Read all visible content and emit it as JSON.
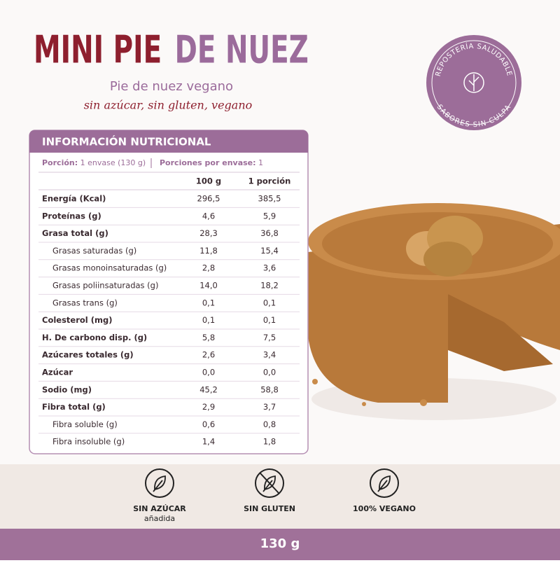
{
  "header": {
    "title_part1": "MINI PIE",
    "title_part2": "DE NUEZ",
    "subtitle": "Pie de nuez vegano",
    "tagline": "sin azúcar, sin gluten, vegano"
  },
  "badge": {
    "top": "REPOSTERÍA SALUDABLE",
    "bottom": "SABORES SIN CULPA"
  },
  "table": {
    "title": "INFORMACIÓN NUTRICIONAL",
    "portion_label": "Porción:",
    "portion_value": "1 envase (130 g)",
    "servings_label": "Porciones por envase:",
    "servings_value": "1",
    "columns": [
      "100 g",
      "1 porción"
    ],
    "rows": [
      {
        "label": "Energía (Kcal)",
        "per100": "296,5",
        "portion": "385,5"
      },
      {
        "label": "Proteínas (g)",
        "per100": "4,6",
        "portion": "5,9"
      },
      {
        "label": "Grasa total (g)",
        "per100": "28,3",
        "portion": "36,8"
      },
      {
        "label": "Grasas saturadas (g)",
        "per100": "11,8",
        "portion": "15,4",
        "indent": true
      },
      {
        "label": "Grasas monoinsaturadas (g)",
        "per100": "2,8",
        "portion": "3,6",
        "indent": true
      },
      {
        "label": "Grasas poliinsaturadas (g)",
        "per100": "14,0",
        "portion": "18,2",
        "indent": true
      },
      {
        "label": "Grasas trans (g)",
        "per100": "0,1",
        "portion": "0,1",
        "indent": true
      },
      {
        "label": "Colesterol (mg)",
        "per100": "0,1",
        "portion": "0,1"
      },
      {
        "label": "H. De carbono disp. (g)",
        "per100": "5,8",
        "portion": "7,5"
      },
      {
        "label": "Azúcares totales (g)",
        "per100": "2,6",
        "portion": "3,4"
      },
      {
        "label": "Azúcar",
        "per100": "0,0",
        "portion": "0,0"
      },
      {
        "label": "Sodio (mg)",
        "per100": "45,2",
        "portion": "58,8"
      },
      {
        "label": "Fibra total (g)",
        "per100": "2,9",
        "portion": "3,7"
      },
      {
        "label": "Fibra soluble (g)",
        "per100": "0,6",
        "portion": "0,8",
        "indent": true
      },
      {
        "label": "Fibra insoluble (g)",
        "per100": "1,4",
        "portion": "1,8",
        "indent": true
      }
    ]
  },
  "features": [
    {
      "label": "SIN AZÚCAR",
      "sub": "añadida"
    },
    {
      "label": "SIN GLUTEN"
    },
    {
      "label": "100% VEGANO"
    }
  ],
  "footer": {
    "weight": "130 g"
  }
}
